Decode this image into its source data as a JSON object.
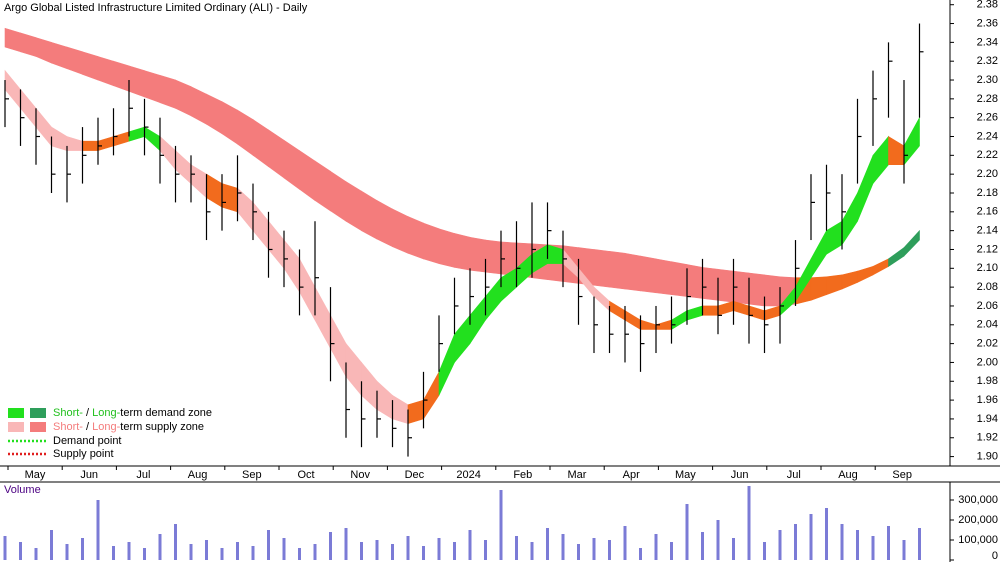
{
  "chart_data": {
    "type": "ohlc",
    "title": "Argo Global Listed Infrastructure Limited Ordinary (ALI) - Daily",
    "x_labels": [
      "May",
      "Jun",
      "Jul",
      "Aug",
      "Sep",
      "Oct",
      "Nov",
      "Dec",
      "2024",
      "Feb",
      "Mar",
      "Apr",
      "May",
      "Jun",
      "Jul",
      "Aug",
      "Sep"
    ],
    "ylim": [
      1.89,
      2.385
    ],
    "yticks": [
      {
        "value": 1.9,
        "label": "1.90"
      },
      {
        "value": 1.92,
        "label": "1.92"
      },
      {
        "value": 1.94,
        "label": "1.94"
      },
      {
        "value": 1.96,
        "label": "1.96"
      },
      {
        "value": 1.98,
        "label": "1.98"
      },
      {
        "value": 2.0,
        "label": "2.00"
      },
      {
        "value": 2.02,
        "label": "2.02"
      },
      {
        "value": 2.04,
        "label": "2.04"
      },
      {
        "value": 2.06,
        "label": "2.06"
      },
      {
        "value": 2.08,
        "label": "2.08"
      },
      {
        "value": 2.1,
        "label": "2.10"
      },
      {
        "value": 2.12,
        "label": "2.12"
      },
      {
        "value": 2.14,
        "label": "2.14"
      },
      {
        "value": 2.16,
        "label": "2.16"
      },
      {
        "value": 2.18,
        "label": "2.18"
      },
      {
        "value": 2.2,
        "label": "2.20"
      },
      {
        "value": 2.22,
        "label": "2.22"
      },
      {
        "value": 2.24,
        "label": "2.24"
      },
      {
        "value": 2.26,
        "label": "2.26"
      },
      {
        "value": 2.28,
        "label": "2.28"
      },
      {
        "value": 2.3,
        "label": "2.30"
      },
      {
        "value": 2.32,
        "label": "2.32"
      },
      {
        "value": 2.34,
        "label": "2.34"
      },
      {
        "value": 2.36,
        "label": "2.36"
      },
      {
        "value": 2.38,
        "label": "2.38"
      }
    ],
    "high": [
      2.3,
      2.29,
      2.27,
      2.24,
      2.23,
      2.25,
      2.26,
      2.27,
      2.3,
      2.28,
      2.26,
      2.23,
      2.22,
      2.2,
      2.2,
      2.22,
      2.19,
      2.16,
      2.14,
      2.12,
      2.15,
      2.08,
      2.0,
      1.98,
      1.97,
      1.96,
      1.95,
      1.99,
      2.05,
      2.09,
      2.1,
      2.11,
      2.14,
      2.15,
      2.17,
      2.17,
      2.14,
      2.11,
      2.07,
      2.06,
      2.06,
      2.05,
      2.06,
      2.07,
      2.1,
      2.11,
      2.09,
      2.11,
      2.09,
      2.07,
      2.08,
      2.13,
      2.2,
      2.21,
      2.2,
      2.28,
      2.31,
      2.34,
      2.3,
      2.36
    ],
    "low": [
      2.25,
      2.23,
      2.21,
      2.18,
      2.17,
      2.19,
      2.21,
      2.22,
      2.24,
      2.22,
      2.19,
      2.17,
      2.17,
      2.13,
      2.14,
      2.15,
      2.13,
      2.09,
      2.08,
      2.05,
      2.05,
      1.98,
      1.92,
      1.91,
      1.92,
      1.91,
      1.9,
      1.93,
      1.99,
      2.03,
      2.04,
      2.05,
      2.08,
      2.08,
      2.09,
      2.11,
      2.08,
      2.04,
      2.01,
      2.01,
      2.0,
      1.99,
      2.01,
      2.02,
      2.04,
      2.05,
      2.03,
      2.04,
      2.02,
      2.01,
      2.02,
      2.06,
      2.13,
      2.14,
      2.12,
      2.19,
      2.23,
      2.26,
      2.19,
      2.26
    ],
    "close": [
      2.28,
      2.26,
      2.24,
      2.2,
      2.2,
      2.22,
      2.23,
      2.24,
      2.27,
      2.25,
      2.22,
      2.2,
      2.2,
      2.16,
      2.17,
      2.18,
      2.16,
      2.12,
      2.11,
      2.08,
      2.09,
      2.02,
      1.95,
      1.94,
      1.94,
      1.93,
      1.92,
      1.96,
      2.02,
      2.06,
      2.07,
      2.08,
      2.11,
      2.1,
      2.12,
      2.14,
      2.11,
      2.07,
      2.04,
      2.03,
      2.03,
      2.02,
      2.04,
      2.04,
      2.07,
      2.08,
      2.05,
      2.08,
      2.05,
      2.04,
      2.06,
      2.1,
      2.17,
      2.18,
      2.16,
      2.24,
      2.28,
      2.32,
      2.22,
      2.33
    ],
    "long_zone": {
      "upper": [
        2.355,
        2.35,
        2.345,
        2.34,
        2.335,
        2.33,
        2.325,
        2.32,
        2.315,
        2.31,
        2.305,
        2.3,
        2.293,
        2.285,
        2.277,
        2.268,
        2.258,
        2.247,
        2.236,
        2.225,
        2.214,
        2.203,
        2.192,
        2.182,
        2.172,
        2.163,
        2.155,
        2.148,
        2.142,
        2.137,
        2.133,
        2.13,
        2.128,
        2.127,
        2.126,
        2.125,
        2.124,
        2.122,
        2.12,
        2.118,
        2.116,
        2.113,
        2.11,
        2.107,
        2.104,
        2.101,
        2.099,
        2.097,
        2.095,
        2.093,
        2.091,
        2.09,
        2.09,
        2.091,
        2.093,
        2.097,
        2.102,
        2.11,
        2.122,
        2.14
      ],
      "lower": [
        2.335,
        2.33,
        2.325,
        2.318,
        2.312,
        2.306,
        2.3,
        2.294,
        2.288,
        2.282,
        2.276,
        2.27,
        2.262,
        2.253,
        2.243,
        2.232,
        2.22,
        2.208,
        2.196,
        2.184,
        2.172,
        2.161,
        2.15,
        2.14,
        2.131,
        2.123,
        2.116,
        2.11,
        2.105,
        2.101,
        2.098,
        2.096,
        2.094,
        2.092,
        2.09,
        2.088,
        2.086,
        2.084,
        2.082,
        2.08,
        2.078,
        2.076,
        2.074,
        2.072,
        2.07,
        2.068,
        2.066,
        2.064,
        2.062,
        2.06,
        2.06,
        2.062,
        2.066,
        2.072,
        2.078,
        2.085,
        2.093,
        2.102,
        2.113,
        2.13
      ],
      "colors": [
        "#f47c7c",
        "#f47c7c",
        "#f47c7c",
        "#f47c7c",
        "#f47c7c",
        "#f47c7c",
        "#f47c7c",
        "#f47c7c",
        "#f47c7c",
        "#f47c7c",
        "#f47c7c",
        "#f47c7c",
        "#f47c7c",
        "#f47c7c",
        "#f47c7c",
        "#f47c7c",
        "#f47c7c",
        "#f47c7c",
        "#f47c7c",
        "#f47c7c",
        "#f47c7c",
        "#f47c7c",
        "#f47c7c",
        "#f47c7c",
        "#f47c7c",
        "#f47c7c",
        "#f47c7c",
        "#f47c7c",
        "#f47c7c",
        "#f47c7c",
        "#f47c7c",
        "#f47c7c",
        "#f47c7c",
        "#f47c7c",
        "#f47c7c",
        "#f47c7c",
        "#f47c7c",
        "#f47c7c",
        "#f47c7c",
        "#f47c7c",
        "#f47c7c",
        "#f47c7c",
        "#f47c7c",
        "#f47c7c",
        "#f47c7c",
        "#f47c7c",
        "#f47c7c",
        "#f47c7c",
        "#f47c7c",
        "#f47c7c",
        "#f47c7c",
        "#f26b1d",
        "#f26b1d",
        "#f26b1d",
        "#f26b1d",
        "#f26b1d",
        "#f26b1d",
        "#2e9e5b",
        "#2e9e5b",
        "#2e9e5b"
      ]
    },
    "short_zone": {
      "upper": [
        2.31,
        2.29,
        2.27,
        2.25,
        2.24,
        2.235,
        2.235,
        2.24,
        2.245,
        2.25,
        2.24,
        2.225,
        2.21,
        2.2,
        2.19,
        2.185,
        2.17,
        2.15,
        2.13,
        2.11,
        2.08,
        2.05,
        2.02,
        2.0,
        1.98,
        1.965,
        1.955,
        1.96,
        1.99,
        2.03,
        2.05,
        2.07,
        2.09,
        2.1,
        2.115,
        2.125,
        2.12,
        2.1,
        2.08,
        2.065,
        2.055,
        2.045,
        2.04,
        2.045,
        2.055,
        2.06,
        2.06,
        2.065,
        2.06,
        2.055,
        2.06,
        2.08,
        2.11,
        2.14,
        2.15,
        2.18,
        2.22,
        2.24,
        2.23,
        2.26
      ],
      "lower": [
        2.29,
        2.27,
        2.25,
        2.23,
        2.225,
        2.225,
        2.225,
        2.23,
        2.235,
        2.24,
        2.225,
        2.205,
        2.19,
        2.175,
        2.165,
        2.16,
        2.14,
        2.12,
        2.1,
        2.075,
        2.045,
        2.015,
        1.985,
        1.965,
        1.95,
        1.94,
        1.935,
        1.94,
        1.965,
        2.0,
        2.02,
        2.045,
        2.065,
        2.08,
        2.095,
        2.105,
        2.105,
        2.09,
        2.07,
        2.055,
        2.045,
        2.035,
        2.035,
        2.035,
        2.045,
        2.05,
        2.05,
        2.055,
        2.05,
        2.045,
        2.05,
        2.065,
        2.09,
        2.115,
        2.125,
        2.15,
        2.19,
        2.21,
        2.21,
        2.23
      ],
      "colors": [
        "#f9b7b7",
        "#f9b7b7",
        "#f9b7b7",
        "#f9b7b7",
        "#f9b7b7",
        "#f26b1d",
        "#f26b1d",
        "#f26b1d",
        "#22e01e",
        "#22e01e",
        "#f9b7b7",
        "#f9b7b7",
        "#f9b7b7",
        "#f26b1d",
        "#f26b1d",
        "#f9b7b7",
        "#f9b7b7",
        "#f9b7b7",
        "#f9b7b7",
        "#f9b7b7",
        "#f9b7b7",
        "#f9b7b7",
        "#f9b7b7",
        "#f9b7b7",
        "#f9b7b7",
        "#f9b7b7",
        "#f26b1d",
        "#f26b1d",
        "#22e01e",
        "#22e01e",
        "#22e01e",
        "#22e01e",
        "#22e01e",
        "#22e01e",
        "#22e01e",
        "#22e01e",
        "#f9b7b7",
        "#f9b7b7",
        "#f9b7b7",
        "#f26b1d",
        "#f26b1d",
        "#f26b1d",
        "#f26b1d",
        "#22e01e",
        "#22e01e",
        "#f26b1d",
        "#f26b1d",
        "#f26b1d",
        "#f26b1d",
        "#f26b1d",
        "#22e01e",
        "#22e01e",
        "#22e01e",
        "#22e01e",
        "#22e01e",
        "#22e01e",
        "#22e01e",
        "#f26b1d",
        "#22e01e",
        "#22e01e"
      ]
    },
    "volume": {
      "label": "Volume",
      "color": "#7b7bd6",
      "ylim": [
        0,
        380000
      ],
      "yticks": [
        0,
        {
          "value": 100000,
          "label": "100,000"
        },
        {
          "value": 200000,
          "label": "200,000"
        },
        {
          "value": 300000,
          "label": "300,000"
        }
      ],
      "values": [
        120000,
        90000,
        60000,
        150000,
        80000,
        110000,
        300000,
        70000,
        90000,
        60000,
        130000,
        180000,
        80000,
        100000,
        60000,
        90000,
        70000,
        150000,
        110000,
        60000,
        80000,
        140000,
        160000,
        90000,
        100000,
        80000,
        120000,
        70000,
        110000,
        90000,
        150000,
        100000,
        350000,
        120000,
        90000,
        160000,
        130000,
        80000,
        110000,
        100000,
        170000,
        60000,
        130000,
        90000,
        280000,
        140000,
        200000,
        110000,
        370000,
        90000,
        150000,
        180000,
        230000,
        260000,
        180000,
        150000,
        120000,
        170000,
        100000,
        160000
      ]
    },
    "legend": [
      {
        "short": "Short-",
        "sep": " / ",
        "long": "Long-",
        "rest": "term demand zone",
        "short_color": "#22e01e",
        "long_color": "#2e9e5b",
        "text_color": "#22c01e"
      },
      {
        "short": "Short-",
        "sep": " / ",
        "long": "Long-",
        "rest": "term supply zone",
        "short_color": "#f9b7b7",
        "long_color": "#f47c7c",
        "text_color": "#f47c7c"
      }
    ],
    "points": [
      {
        "label": "Demand point",
        "color": "#22e01e"
      },
      {
        "label": "Supply point",
        "color": "#e01e1e"
      }
    ]
  }
}
